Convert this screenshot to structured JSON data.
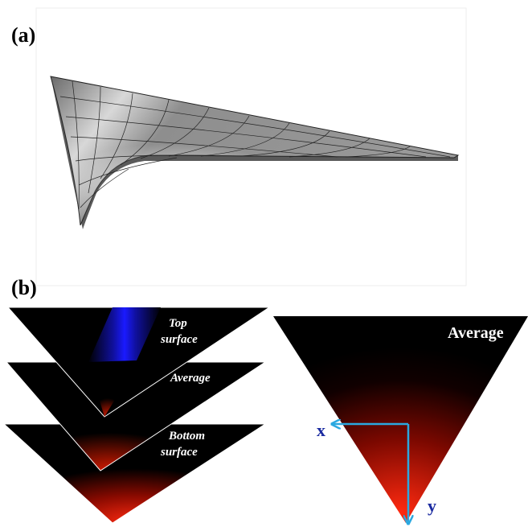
{
  "panel_a": {
    "label": "(a)"
  },
  "panel_b": {
    "label": "(b)",
    "stack_labels": {
      "top": [
        "Top",
        "surface"
      ],
      "middle": "Average",
      "bottom": [
        "Bottom",
        "surface"
      ]
    },
    "average_label": "Average",
    "x_axis": "x",
    "y_axis": "y"
  }
}
